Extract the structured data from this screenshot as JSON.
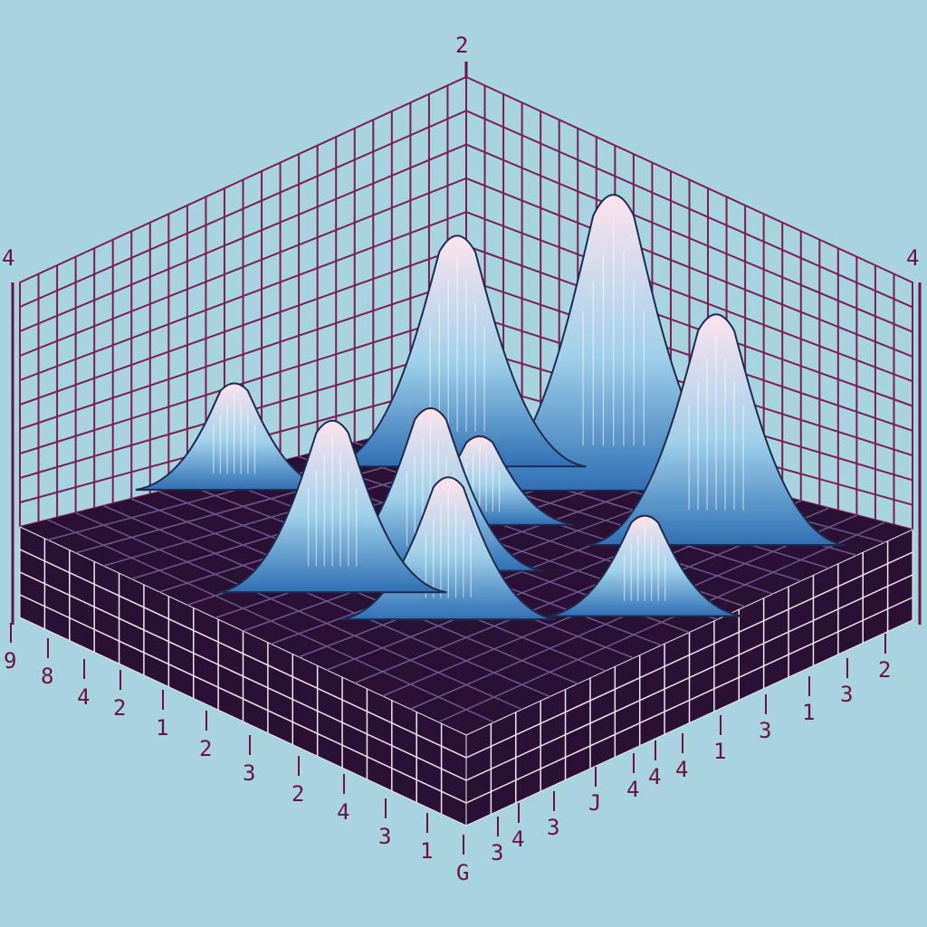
{
  "colors": {
    "background": "#a8d4df",
    "grid": "#7a1f4f",
    "base_fill": "#2a1033",
    "base_grid": "#f1e6f0",
    "peak_low": "#2f6fb3",
    "peak_mid": "#9fd0ea",
    "peak_high": "#fde4ec",
    "label": "#6a1240"
  },
  "chart_data": {
    "type": "surface3d",
    "title": "",
    "xlabel": "",
    "ylabel": "",
    "zlabel": "",
    "grid": true,
    "axis_top_label": "2",
    "axis_left_label": "4",
    "axis_right_label": "4",
    "left_edge_ticks": [
      "9",
      "8",
      "4",
      "2",
      "1",
      "2",
      "3",
      "2",
      "4",
      "3",
      "1",
      "G"
    ],
    "right_edge_ticks": [
      "3",
      "4",
      "3",
      "J",
      "4",
      "4",
      "4",
      "1",
      "3",
      "1",
      "3",
      "2"
    ],
    "peaks": [
      {
        "x": 0.47,
        "y": 0.14,
        "height": 1.0
      },
      {
        "x": 0.2,
        "y": 0.22,
        "height": 0.78
      },
      {
        "x": 0.78,
        "y": 0.22,
        "height": 0.78
      },
      {
        "x": 0.06,
        "y": 0.58,
        "height": 0.36
      },
      {
        "x": 0.9,
        "y": 0.5,
        "height": 0.34
      },
      {
        "x": 0.43,
        "y": 0.4,
        "height": 0.3
      },
      {
        "x": 0.52,
        "y": 0.6,
        "height": 0.55
      },
      {
        "x": 0.48,
        "y": 0.78,
        "height": 0.58
      },
      {
        "x": 0.68,
        "y": 0.72,
        "height": 0.48
      }
    ]
  }
}
